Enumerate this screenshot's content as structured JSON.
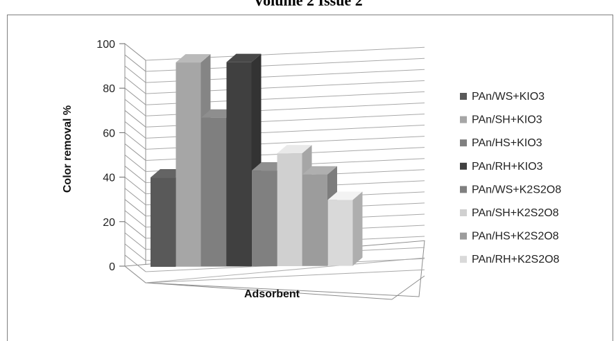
{
  "page": {
    "title": "Volume 2 Issue 2"
  },
  "chart_data": {
    "type": "bar",
    "title": "",
    "xlabel": "Adsorbent",
    "ylabel": "Color removal %",
    "ylim": [
      0,
      100
    ],
    "y_ticks": [
      0,
      20,
      40,
      60,
      80,
      100
    ],
    "grid": true,
    "legend_position": "right",
    "series": [
      {
        "name": "PAn/WS+KIO3",
        "value": 42,
        "color": "#595959"
      },
      {
        "name": "PAn/SH+KIO3",
        "value": 96,
        "color": "#a6a6a6"
      },
      {
        "name": "PAn/HS+KIO3",
        "value": 70,
        "color": "#7f7f7f"
      },
      {
        "name": "PAn/RH+KIO3",
        "value": 96,
        "color": "#404040"
      },
      {
        "name": "PAn/WS+K2S2O8",
        "value": 45,
        "color": "#808080"
      },
      {
        "name": "PAn/SH+K2S2O8",
        "value": 53,
        "color": "#d0d0d0"
      },
      {
        "name": "PAn/HS+K2S2O8",
        "value": 43,
        "color": "#9c9c9c"
      },
      {
        "name": "PAn/RH+K2S2O8",
        "value": 31,
        "color": "#d9d9d9"
      }
    ]
  }
}
